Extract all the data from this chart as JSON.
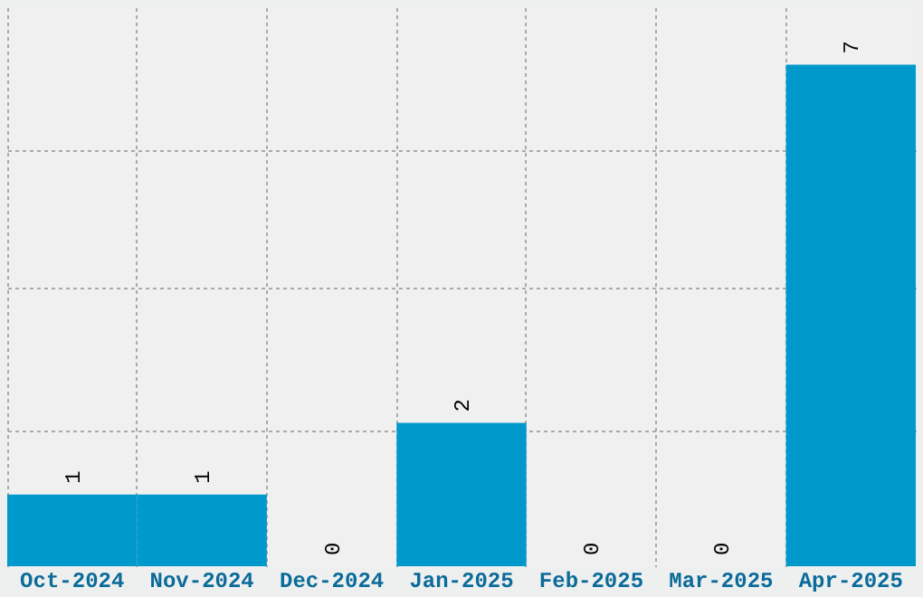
{
  "chart_data": {
    "type": "bar",
    "categories": [
      "Oct-2024",
      "Nov-2024",
      "Dec-2024",
      "Jan-2025",
      "Feb-2025",
      "Mar-2025",
      "Apr-2025"
    ],
    "values": [
      1,
      1,
      0,
      2,
      0,
      0,
      7
    ],
    "color": "#0099cc",
    "data_labels": true,
    "grid": true,
    "ylim": [
      0,
      7.8
    ],
    "yticks": [
      {
        "value": 1.9,
        "label": null
      },
      {
        "value": 3.9,
        "label": null
      },
      {
        "value": 5.8,
        "label": null
      }
    ],
    "tick_labels": "x"
  }
}
